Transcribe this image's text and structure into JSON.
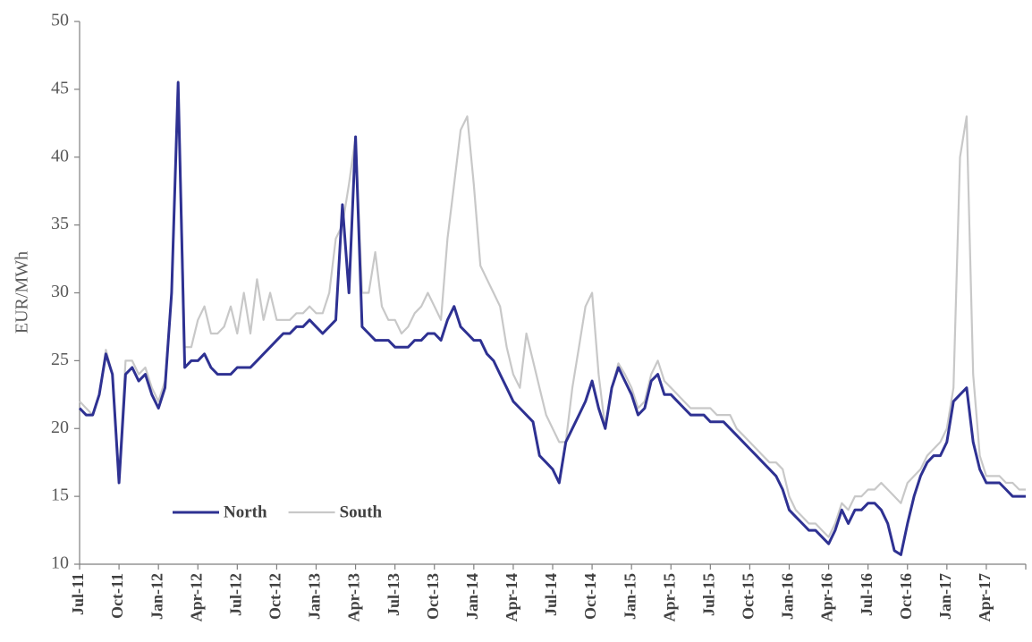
{
  "chart_data": {
    "type": "line",
    "y_label": "EUR/MWh",
    "categories": [
      "Jul-11",
      null,
      null,
      null,
      null,
      null,
      "Oct-11",
      null,
      null,
      null,
      null,
      null,
      "Jan-12",
      null,
      null,
      null,
      null,
      null,
      "Apr-12",
      null,
      null,
      null,
      null,
      null,
      "Jul-12",
      null,
      null,
      null,
      null,
      null,
      "Oct-12",
      null,
      null,
      null,
      null,
      null,
      "Jan-13",
      null,
      null,
      null,
      null,
      null,
      "Apr-13",
      null,
      null,
      null,
      null,
      null,
      "Jul-13",
      null,
      null,
      null,
      null,
      null,
      "Oct-13",
      null,
      null,
      null,
      null,
      null,
      "Jan-14",
      null,
      null,
      null,
      null,
      null,
      "Apr-14",
      null,
      null,
      null,
      null,
      null,
      "Jul-14",
      null,
      null,
      null,
      null,
      null,
      "Oct-14",
      null,
      null,
      null,
      null,
      null,
      "Jan-15",
      null,
      null,
      null,
      null,
      null,
      "Apr-15",
      null,
      null,
      null,
      null,
      null,
      "Jul-15",
      null,
      null,
      null,
      null,
      null,
      "Oct-15",
      null,
      null,
      null,
      null,
      null,
      "Jan-16",
      null,
      null,
      null,
      null,
      null,
      "Apr-16",
      null,
      null,
      null,
      null,
      null,
      "Jul-16",
      null,
      null,
      null,
      null,
      null,
      "Oct-16",
      null,
      null,
      null,
      null,
      null,
      "Jan-17",
      null,
      null,
      null,
      null,
      null,
      "Apr-17",
      null,
      null,
      null,
      null,
      null,
      null
    ],
    "series": [
      {
        "name": "South",
        "color": "#c8c8c8",
        "width": 2.2,
        "values": [
          22,
          21.5,
          21,
          22.5,
          25.8,
          24,
          16.5,
          25,
          25,
          24,
          24.5,
          23,
          22,
          23.5,
          30,
          45.6,
          26,
          26,
          28,
          29,
          27,
          27,
          27.5,
          29,
          27,
          30,
          27,
          31,
          28,
          30,
          28,
          28,
          28,
          28.5,
          28.5,
          29,
          28.5,
          28.5,
          30,
          34,
          35,
          38,
          41.5,
          30,
          30,
          33,
          29,
          28,
          28,
          27,
          27.5,
          28.5,
          29,
          30,
          29,
          28,
          34,
          38,
          42,
          43,
          38,
          32,
          31,
          30,
          29,
          26,
          24,
          23,
          27,
          25,
          23,
          21,
          20,
          19,
          19,
          23,
          26,
          29,
          30,
          24,
          20,
          23,
          24.8,
          24,
          23,
          21.5,
          22,
          24,
          25,
          23.5,
          23,
          22.5,
          22,
          21.5,
          21.5,
          21.5,
          21.5,
          21,
          21,
          21,
          20,
          19.5,
          19,
          18.5,
          18,
          17.5,
          17.5,
          17,
          15,
          14,
          13.5,
          13,
          13,
          12.5,
          12,
          13,
          14.5,
          14,
          15,
          15,
          15.5,
          15.5,
          16,
          15.5,
          15,
          14.5,
          16,
          16.5,
          17,
          18,
          18.5,
          19,
          20,
          23,
          40,
          43,
          24,
          18,
          16.5,
          16.5,
          16.5,
          16,
          16,
          15.5,
          15.5
        ]
      },
      {
        "name": "North",
        "color": "#2e3192",
        "width": 3,
        "values": [
          21.5,
          21,
          21,
          22.5,
          25.5,
          24,
          16,
          24,
          24.5,
          23.5,
          24,
          22.5,
          21.5,
          23,
          30,
          45.5,
          24.5,
          25,
          25,
          25.5,
          24.5,
          24,
          24,
          24,
          24.5,
          24.5,
          24.5,
          25,
          25.5,
          26,
          26.5,
          27,
          27,
          27.5,
          27.5,
          28,
          27.5,
          27,
          27.5,
          28,
          36.5,
          30,
          41.5,
          27.5,
          27,
          26.5,
          26.5,
          26.5,
          26,
          26,
          26,
          26.5,
          26.5,
          27,
          27,
          26.5,
          28,
          29,
          27.5,
          27,
          26.5,
          26.5,
          25.5,
          25,
          24,
          23,
          22,
          21.5,
          21,
          20.5,
          18,
          17.5,
          17,
          16,
          19,
          20,
          21,
          22,
          23.5,
          21.5,
          20,
          23,
          24.5,
          23.5,
          22.5,
          21,
          21.5,
          23.5,
          24,
          22.5,
          22.5,
          22,
          21.5,
          21,
          21,
          21,
          20.5,
          20.5,
          20.5,
          20,
          19.5,
          19,
          18.5,
          18,
          17.5,
          17,
          16.5,
          15.5,
          14,
          13.5,
          13,
          12.5,
          12.5,
          12,
          11.5,
          12.5,
          14,
          13,
          14,
          14,
          14.5,
          14.5,
          14,
          13,
          11,
          10.7,
          13,
          15,
          16.5,
          17.5,
          18,
          18,
          19,
          22,
          22.5,
          23,
          19,
          17,
          16,
          16,
          16,
          15.5,
          15,
          15,
          15
        ]
      }
    ],
    "ylim": [
      10,
      50
    ],
    "yticks": [
      10,
      15,
      20,
      25,
      30,
      35,
      40,
      45,
      50
    ],
    "grid": false,
    "legend": "lower-left"
  }
}
